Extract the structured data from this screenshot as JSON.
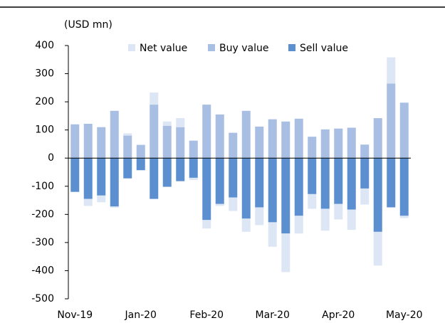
{
  "chart_data": {
    "type": "bar",
    "stacked": true,
    "y_axis_label": "(USD mn)",
    "categories": [
      "Nov-19",
      null,
      null,
      null,
      null,
      "Jan-20",
      null,
      null,
      null,
      null,
      "Feb-20",
      null,
      null,
      null,
      null,
      "Mar-20",
      null,
      null,
      null,
      null,
      "Apr-20",
      null,
      null,
      null,
      null,
      "May-20"
    ],
    "series": [
      {
        "name": "Net value",
        "color": "#dde6f5",
        "values": [
          0,
          -25,
          -24,
          -4,
          8,
          3,
          43,
          15,
          32,
          -8,
          -30,
          -7,
          -48,
          -47,
          -63,
          -87,
          -137,
          -63,
          -52,
          -78,
          -55,
          -72,
          -57,
          -120,
          93,
          -8
        ]
      },
      {
        "name": "Buy value",
        "color": "#a9bee3",
        "values": [
          120,
          122,
          110,
          168,
          80,
          46,
          190,
          115,
          110,
          62,
          190,
          155,
          90,
          168,
          112,
          138,
          130,
          140,
          76,
          102,
          105,
          108,
          48,
          142,
          265,
          197
        ]
      },
      {
        "name": "Sell value",
        "color": "#5b8fcf",
        "values": [
          -120,
          -145,
          -133,
          -172,
          -72,
          -43,
          -145,
          -102,
          -82,
          -70,
          -220,
          -163,
          -140,
          -215,
          -175,
          -228,
          -268,
          -205,
          -128,
          -180,
          -163,
          -183,
          -108,
          -262,
          -175,
          -205
        ]
      }
    ],
    "ylim": [
      -500,
      400
    ],
    "yticks": [
      -500,
      -400,
      -300,
      -200,
      -100,
      0,
      100,
      200,
      300,
      400
    ],
    "legend": "top"
  }
}
